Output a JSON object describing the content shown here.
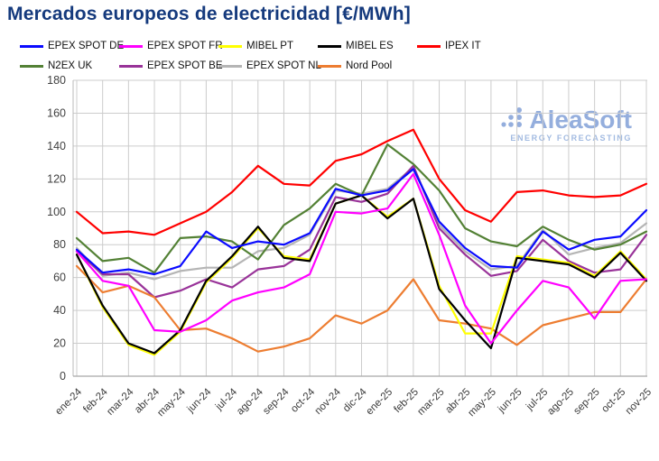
{
  "title": "Mercados europeos de electricidad [€/MWh]",
  "logo": {
    "brand": "AleaSoft",
    "tagline": "ENERGY FORECASTING",
    "color": "#8faadc"
  },
  "axis": {
    "y_ticks": [
      0,
      20,
      40,
      60,
      80,
      100,
      120,
      140,
      160,
      180
    ],
    "label_color": "#3f3f3f",
    "grid_color": "#cccccc"
  },
  "chart_data": {
    "type": "line",
    "title": "Mercados europeos de electricidad [€/MWh]",
    "xlabel": "",
    "ylabel": "",
    "ylim": [
      0,
      180
    ],
    "ytick_step": 20,
    "grid": true,
    "legend_position": "top",
    "x": [
      "ene-24",
      "feb-24",
      "mar-24",
      "abr-24",
      "may-24",
      "jun-24",
      "jul-24",
      "ago-24",
      "sep-24",
      "oct-24",
      "nov-24",
      "dic-24",
      "ene-25",
      "feb-25",
      "mar-25",
      "abr-25",
      "may-25",
      "jun-25",
      "jul-25",
      "ago-25",
      "sep-25",
      "oct-25",
      "nov-25"
    ],
    "series": [
      {
        "name": "EPEX SPOT DE",
        "color": "#0a0aff",
        "values": [
          77,
          63,
          65,
          62,
          67,
          88,
          78,
          82,
          80,
          87,
          114,
          110,
          113,
          126,
          94,
          78,
          67,
          66,
          88,
          77,
          83,
          85,
          101
        ]
      },
      {
        "name": "EPEX SPOT FR",
        "color": "#ff00ff",
        "values": [
          76,
          58,
          55,
          28,
          27,
          34,
          46,
          51,
          54,
          62,
          100,
          99,
          102,
          123,
          86,
          43,
          20,
          40,
          58,
          54,
          35,
          58,
          59
        ]
      },
      {
        "name": "MIBEL PT",
        "color": "#ffff00",
        "values": [
          74,
          42,
          19,
          13,
          27,
          57,
          72,
          90,
          73,
          71,
          105,
          110,
          97,
          108,
          55,
          26,
          26,
          73,
          71,
          69,
          61,
          76,
          59
        ]
      },
      {
        "name": "MIBEL ES",
        "color": "#000000",
        "values": [
          74,
          43,
          20,
          14,
          28,
          58,
          73,
          91,
          72,
          70,
          105,
          110,
          96,
          108,
          53,
          34,
          17,
          72,
          70,
          68,
          60,
          75,
          58
        ]
      },
      {
        "name": "IPEX IT",
        "color": "#ff0000",
        "values": [
          100,
          87,
          88,
          86,
          93,
          100,
          112,
          128,
          117,
          116,
          131,
          135,
          143,
          150,
          120,
          101,
          94,
          112,
          113,
          110,
          109,
          110,
          117
        ]
      },
      {
        "name": "N2EX UK",
        "color": "#538135",
        "values": [
          84,
          70,
          72,
          63,
          84,
          85,
          82,
          71,
          92,
          102,
          117,
          110,
          141,
          129,
          113,
          90,
          82,
          79,
          91,
          83,
          77,
          80,
          88
        ]
      },
      {
        "name": "EPEX SPOT BE",
        "color": "#993399",
        "values": [
          76,
          62,
          62,
          48,
          52,
          59,
          54,
          65,
          67,
          77,
          109,
          106,
          111,
          128,
          90,
          74,
          61,
          64,
          83,
          70,
          63,
          65,
          86
        ]
      },
      {
        "name": "EPEX SPOT NL",
        "color": "#b5b5b5",
        "values": [
          78,
          61,
          63,
          59,
          64,
          66,
          66,
          76,
          78,
          86,
          113,
          111,
          114,
          127,
          92,
          76,
          65,
          67,
          89,
          74,
          78,
          81,
          93
        ]
      },
      {
        "name": "Nord Pool",
        "color": "#ed7d31",
        "values": [
          67,
          51,
          55,
          48,
          28,
          29,
          23,
          15,
          18,
          23,
          37,
          32,
          40,
          59,
          34,
          32,
          29,
          19,
          31,
          35,
          39,
          39,
          59
        ]
      }
    ],
    "legend_rows": [
      [
        "EPEX SPOT DE",
        "EPEX SPOT FR",
        "MIBEL PT",
        "MIBEL ES",
        "IPEX IT"
      ],
      [
        "N2EX UK",
        "EPEX SPOT BE",
        "EPEX SPOT NL",
        "Nord Pool"
      ]
    ]
  }
}
